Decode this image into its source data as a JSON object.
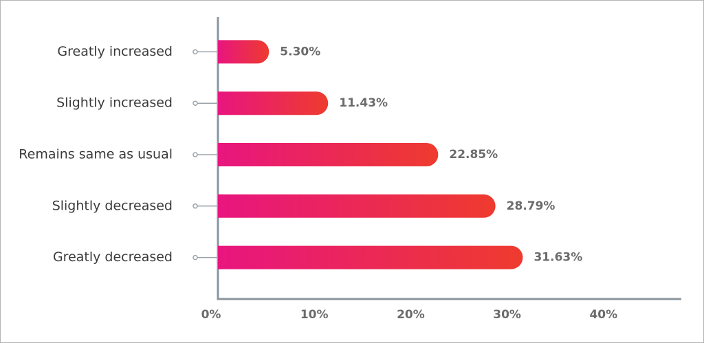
{
  "chart_data": {
    "type": "hbar",
    "categories": [
      "Greatly increased",
      "Slightly increased",
      "Remains same as usual",
      "Slightly decreased",
      "Greatly decreased"
    ],
    "values": [
      5.3,
      11.43,
      22.85,
      28.79,
      31.63
    ],
    "value_labels": [
      "5.30%",
      "11.43%",
      "22.85%",
      "28.79%",
      "31.63%"
    ],
    "gradient": [
      "#e8157f",
      "#ee3b2e"
    ],
    "xlim": [
      0,
      48
    ],
    "xticks": [
      {
        "value": 0,
        "label": "0%"
      },
      {
        "value": 10,
        "label": "10%"
      },
      {
        "value": 20,
        "label": "20%"
      },
      {
        "value": 30,
        "label": "30%"
      },
      {
        "value": 40,
        "label": "40%"
      }
    ],
    "grid": false
  }
}
